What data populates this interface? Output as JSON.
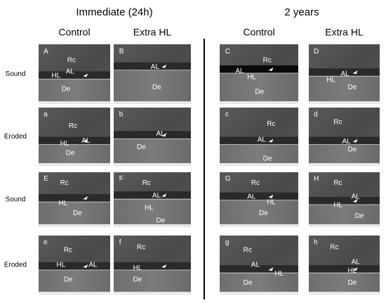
{
  "groups": [
    "Immediate (24h)",
    "2 years"
  ],
  "columns": [
    "Control",
    "Extra HL",
    "Control",
    "Extra HL"
  ],
  "rows": [
    {
      "label": "Sound",
      "panels": [
        {
          "letter": "A",
          "labels": [
            "Rc",
            "AL",
            "HL",
            "De"
          ]
        },
        {
          "letter": "B",
          "labels": [
            "AL",
            "De"
          ]
        },
        {
          "letter": "C",
          "labels": [
            "Rc",
            "AL",
            "HL",
            "De"
          ]
        },
        {
          "letter": "D",
          "labels": [
            "AL",
            "HL",
            "De"
          ]
        }
      ]
    },
    {
      "label": "Eroded",
      "panels": [
        {
          "letter": "a",
          "labels": [
            "Rc",
            "AL",
            "HL",
            "De"
          ]
        },
        {
          "letter": "b",
          "labels": [
            "AL",
            "De"
          ]
        },
        {
          "letter": "c",
          "labels": [
            "Rc",
            "AL",
            "De"
          ]
        },
        {
          "letter": "d",
          "labels": [
            "Rc",
            "AL",
            "De"
          ]
        }
      ]
    },
    {
      "label": "Sound",
      "panels": [
        {
          "letter": "E",
          "labels": [
            "Rc",
            "HL",
            "De"
          ]
        },
        {
          "letter": "F",
          "labels": [
            "Rc",
            "AL",
            "HL",
            "De"
          ]
        },
        {
          "letter": "G",
          "labels": [
            "Rc",
            "AL",
            "HL",
            "De"
          ]
        },
        {
          "letter": "H",
          "labels": [
            "Rc",
            "AL",
            "HL",
            "De"
          ]
        }
      ]
    },
    {
      "label": "Eroded",
      "panels": [
        {
          "letter": "e",
          "labels": [
            "Rc",
            "AL",
            "HL",
            "De"
          ]
        },
        {
          "letter": "f",
          "labels": [
            "Rc",
            "HL",
            "De"
          ]
        },
        {
          "letter": "g",
          "labels": [
            "Rc",
            "AL",
            "HL",
            "De"
          ]
        },
        {
          "letter": "h",
          "labels": [
            "Rc",
            "AL",
            "HL",
            "De"
          ]
        }
      ]
    }
  ]
}
